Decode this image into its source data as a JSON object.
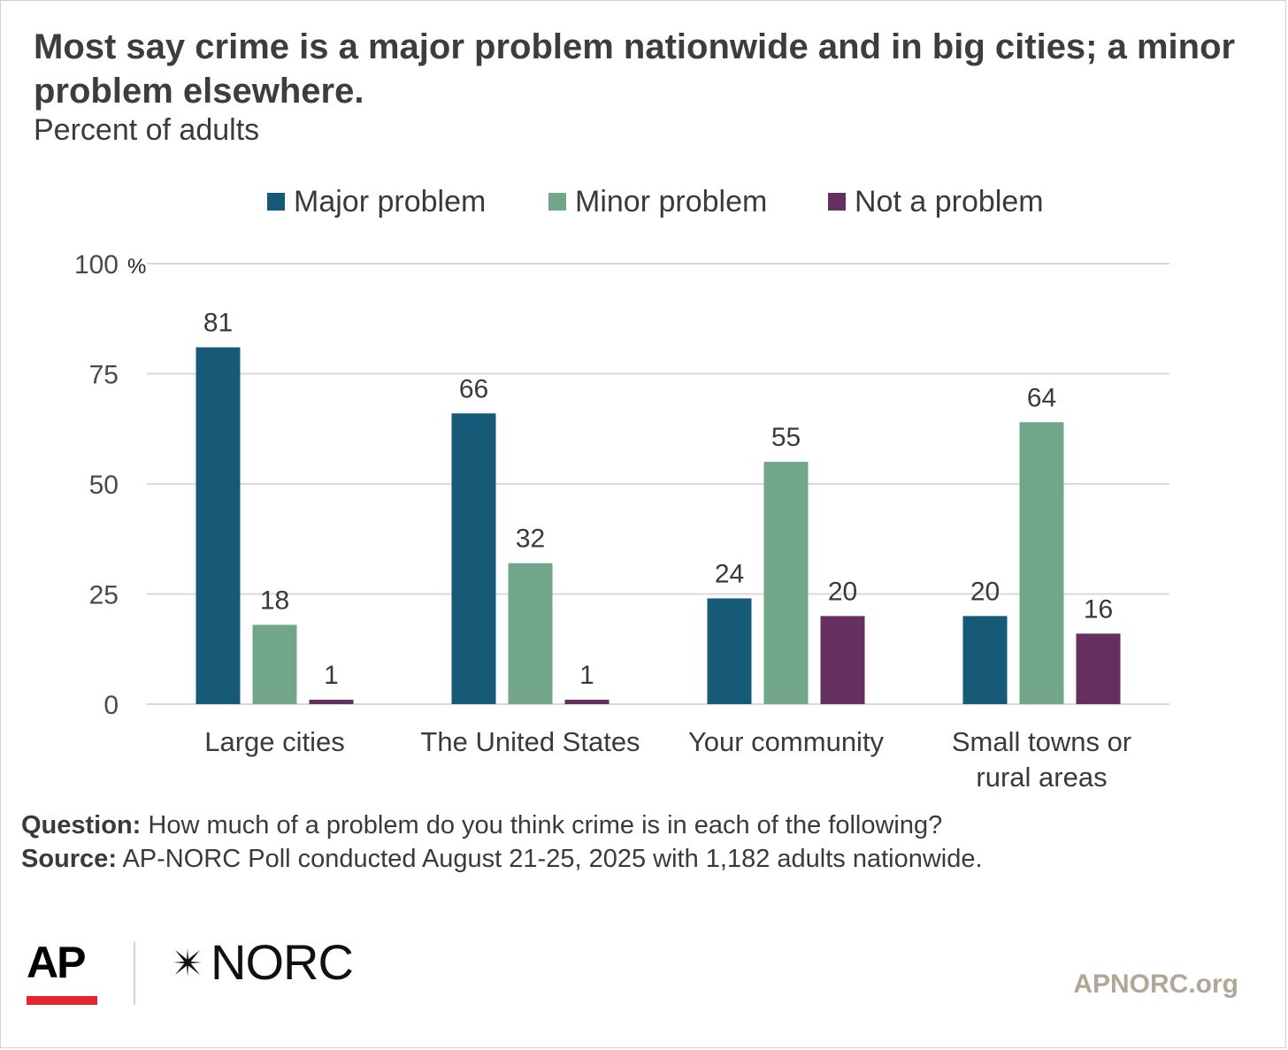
{
  "title": "Most say crime is a major problem nationwide and in big cities; a minor problem elsewhere.",
  "subtitle": "Percent of adults",
  "notes": {
    "question_label": "Question:",
    "question_text": "How much of a problem do you think crime is in each of the following?",
    "source_label": "Source:",
    "source_text": "AP-NORC Poll conducted August 21-25, 2025 with 1,182 adults nationwide."
  },
  "logos": {
    "ap": "AP",
    "norc": "NORC",
    "site": "APNORC.org"
  },
  "colors": {
    "major": "#175a78",
    "minor": "#71a68a",
    "not": "#652f60",
    "grid": "#d9d9d9",
    "ap_red": "#e5272d"
  },
  "chart_data": {
    "type": "bar",
    "categories": [
      "Large cities",
      "The United States",
      "Your community",
      "Small towns or rural areas"
    ],
    "category_lines": [
      [
        "Large cities"
      ],
      [
        "The United States"
      ],
      [
        "Your community"
      ],
      [
        "Small towns or",
        "rural areas"
      ]
    ],
    "series": [
      {
        "name": "Major problem",
        "values": [
          81,
          66,
          24,
          20
        ]
      },
      {
        "name": "Minor problem",
        "values": [
          18,
          32,
          55,
          64
        ]
      },
      {
        "name": "Not a problem",
        "values": [
          1,
          1,
          20,
          16
        ]
      }
    ],
    "ylim": [
      0,
      100
    ],
    "yticks": [
      "0",
      "25",
      "50",
      "75",
      "100"
    ],
    "y_unit": "%",
    "grid": true,
    "legend": "top-center"
  }
}
